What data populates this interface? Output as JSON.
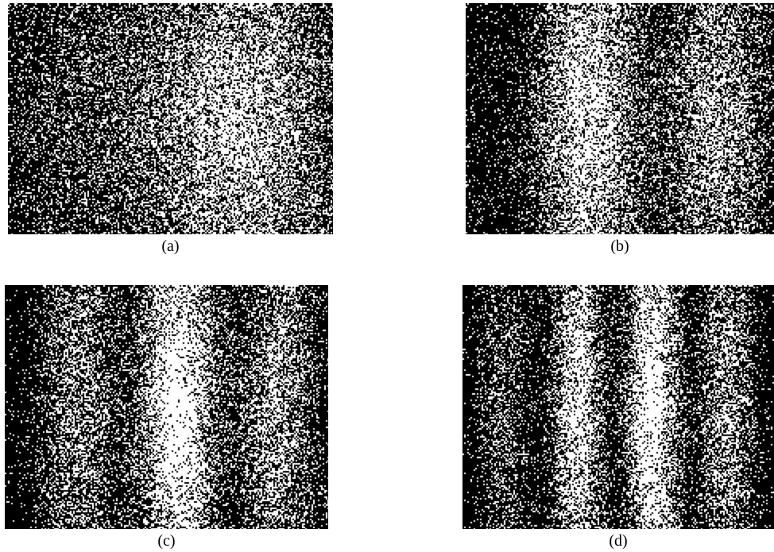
{
  "figure": {
    "panels": [
      {
        "label": "(a)",
        "fringe_count": 2,
        "contrast": "low"
      },
      {
        "label": "(b)",
        "fringe_count": 4,
        "contrast": "medium"
      },
      {
        "label": "(c)",
        "fringe_count": 6,
        "contrast": "medium"
      },
      {
        "label": "(d)",
        "fringe_count": 8,
        "contrast": "high"
      }
    ],
    "colors": {
      "background": "#ffffff",
      "pixel_on": "#ffffff",
      "pixel_off": "#000000",
      "caption_text": "#000000"
    }
  }
}
